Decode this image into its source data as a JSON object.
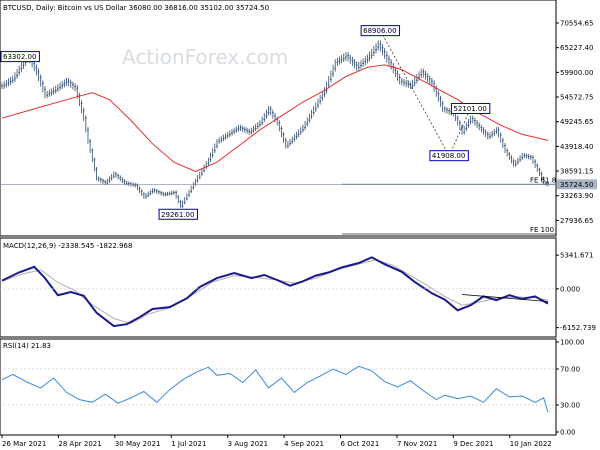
{
  "header": {
    "price": "BTCUSD, Daily:  Bitcoin vs US Dollar  36080.00  36816.00  35102.00  35724.50",
    "macd": "MACD(12,26,9)  -2338.545  -1822.968",
    "rsi": "RSI(14) 21.83"
  },
  "watermark": "ActionForex.com",
  "colors": {
    "candles": "#2d4a6b",
    "ma": "#e03030",
    "macd_line": "#1a1a8c",
    "signal_line": "#b0b0b0",
    "rsi_line": "#3a8ae0",
    "fe_line": "#1f2f3f",
    "annotation_border": "#0000aa",
    "current_price_tag": "#a9b5c4"
  },
  "chart_data": [
    {
      "type": "candlestick",
      "name": "price",
      "title": "BTCUSD, Daily:  Bitcoin vs US Dollar  36080.00  36816.00  35102.00  35724.50",
      "ylim": [
        25000,
        72500
      ],
      "yticks": [
        "70554.65",
        "65227.40",
        "59900.00",
        "54572.75",
        "49245.65",
        "43918.40",
        "38591.15",
        "33263.90",
        "27936.65"
      ],
      "x_labels": [
        "26 Mar 2021",
        "28 Apr 2021",
        "30 May 2021",
        "1 Jul 2021",
        "3 Aug 2021",
        "4 Sep 2021",
        "6 Oct 2021",
        "7 Nov 2021",
        "9 Dec 2021",
        "10 Jan 2022"
      ],
      "close_path": [
        [
          0,
          57000
        ],
        [
          5,
          58500
        ],
        [
          12,
          63500
        ],
        [
          16,
          60000
        ],
        [
          20,
          55000
        ],
        [
          24,
          56000
        ],
        [
          30,
          58000
        ],
        [
          34,
          56500
        ],
        [
          38,
          50000
        ],
        [
          40,
          45000
        ],
        [
          44,
          37000
        ],
        [
          48,
          36000
        ],
        [
          52,
          38000
        ],
        [
          57,
          36000
        ],
        [
          62,
          35500
        ],
        [
          66,
          33000
        ],
        [
          70,
          34500
        ],
        [
          75,
          33500
        ],
        [
          80,
          34000
        ],
        [
          83,
          31000
        ],
        [
          88,
          35000
        ],
        [
          92,
          38000
        ],
        [
          96,
          41000
        ],
        [
          100,
          45000
        ],
        [
          105,
          46500
        ],
        [
          110,
          48000
        ],
        [
          115,
          47000
        ],
        [
          120,
          49000
        ],
        [
          124,
          52000
        ],
        [
          128,
          49000
        ],
        [
          132,
          44000
        ],
        [
          136,
          46000
        ],
        [
          140,
          48000
        ],
        [
          145,
          52000
        ],
        [
          150,
          56000
        ],
        [
          155,
          62000
        ],
        [
          160,
          63500
        ],
        [
          165,
          61000
        ],
        [
          170,
          63000
        ],
        [
          175,
          66000
        ],
        [
          180,
          62000
        ],
        [
          185,
          58000
        ],
        [
          190,
          57000
        ],
        [
          195,
          60000
        ],
        [
          200,
          57500
        ],
        [
          205,
          52000
        ],
        [
          210,
          51000
        ],
        [
          214,
          47000
        ],
        [
          218,
          50000
        ],
        [
          222,
          48000
        ],
        [
          226,
          46000
        ],
        [
          230,
          47500
        ],
        [
          234,
          43000
        ],
        [
          238,
          40000
        ],
        [
          242,
          42000
        ],
        [
          246,
          41500
        ],
        [
          250,
          38000
        ],
        [
          252,
          36000
        ],
        [
          254,
          35724.5
        ]
      ],
      "moving_average": [
        [
          0,
          50000
        ],
        [
          15,
          52000
        ],
        [
          30,
          54000
        ],
        [
          42,
          55500
        ],
        [
          50,
          54000
        ],
        [
          60,
          49500
        ],
        [
          70,
          44500
        ],
        [
          80,
          40500
        ],
        [
          90,
          38500
        ],
        [
          100,
          40500
        ],
        [
          110,
          44000
        ],
        [
          120,
          47500
        ],
        [
          130,
          50500
        ],
        [
          140,
          53500
        ],
        [
          150,
          56000
        ],
        [
          160,
          59000
        ],
        [
          170,
          61000
        ],
        [
          178,
          61500
        ],
        [
          186,
          60500
        ],
        [
          194,
          58500
        ],
        [
          202,
          56500
        ],
        [
          212,
          54000
        ],
        [
          222,
          51000
        ],
        [
          232,
          48500
        ],
        [
          242,
          46500
        ],
        [
          254,
          45200
        ]
      ],
      "annotations": [
        {
          "label": "63302.00",
          "x": 2,
          "y": 63302
        },
        {
          "label": "29261.00",
          "x": 82,
          "y": 29261
        },
        {
          "label": "68906.00",
          "x": 176,
          "y": 68906
        },
        {
          "label": "41908.00",
          "x": 208,
          "y": 41908
        },
        {
          "label": "52101.00",
          "x": 218,
          "y": 52101
        }
      ],
      "fe_levels": [
        {
          "label": "FE 61.8",
          "value": 35724.5
        },
        {
          "label": "FE 100",
          "value": 25000
        }
      ],
      "current_price": "35724.50"
    },
    {
      "type": "line",
      "name": "macd",
      "title": "MACD(12,26,9)  -2338.545  -1822.968",
      "ylim": [
        -7000,
        6000
      ],
      "yticks": [
        "5341.671",
        "0.000",
        "-6152.739"
      ],
      "series": [
        {
          "values": [
            [
              0,
              1300
            ],
            [
              8,
              2600
            ],
            [
              15,
              3500
            ],
            [
              20,
              1700
            ],
            [
              26,
              -1000
            ],
            [
              32,
              -500
            ],
            [
              38,
              -1100
            ],
            [
              44,
              -3800
            ],
            [
              52,
              -5900
            ],
            [
              58,
              -5600
            ],
            [
              64,
              -4500
            ],
            [
              70,
              -3200
            ],
            [
              78,
              -2900
            ],
            [
              86,
              -1500
            ],
            [
              92,
              300
            ],
            [
              100,
              1700
            ],
            [
              108,
              2500
            ],
            [
              116,
              1700
            ],
            [
              122,
              2200
            ],
            [
              128,
              1400
            ],
            [
              134,
              500
            ],
            [
              140,
              1200
            ],
            [
              146,
              2100
            ],
            [
              152,
              2600
            ],
            [
              158,
              3400
            ],
            [
              166,
              4100
            ],
            [
              172,
              5000
            ],
            [
              178,
              3900
            ],
            [
              186,
              2700
            ],
            [
              192,
              1100
            ],
            [
              200,
              -700
            ],
            [
              206,
              -1700
            ],
            [
              212,
              -3400
            ],
            [
              218,
              -2600
            ],
            [
              224,
              -1200
            ],
            [
              230,
              -1800
            ],
            [
              236,
              -1000
            ],
            [
              242,
              -1600
            ],
            [
              248,
              -1200
            ],
            [
              254,
              -2338.5
            ]
          ]
        },
        {
          "values": [
            [
              0,
              1200
            ],
            [
              10,
              2400
            ],
            [
              18,
              3000
            ],
            [
              26,
              1000
            ],
            [
              34,
              -300
            ],
            [
              42,
              -2500
            ],
            [
              52,
              -4700
            ],
            [
              60,
              -5500
            ],
            [
              68,
              -4000
            ],
            [
              78,
              -3000
            ],
            [
              88,
              -1100
            ],
            [
              98,
              1100
            ],
            [
              108,
              2100
            ],
            [
              118,
              1800
            ],
            [
              128,
              1400
            ],
            [
              136,
              900
            ],
            [
              146,
              1700
            ],
            [
              156,
              3000
            ],
            [
              166,
              3900
            ],
            [
              174,
              4600
            ],
            [
              182,
              3700
            ],
            [
              190,
              2100
            ],
            [
              198,
              500
            ],
            [
              206,
              -1200
            ],
            [
              214,
              -2600
            ],
            [
              222,
              -2100
            ],
            [
              230,
              -1500
            ],
            [
              240,
              -1300
            ],
            [
              248,
              -1400
            ],
            [
              254,
              -1823
            ]
          ]
        },
        {
          "values": [
            [
              214,
              -900
            ],
            [
              254,
              -2000
            ]
          ]
        }
      ]
    },
    {
      "type": "line",
      "name": "rsi",
      "title": "RSI(14) 21.83",
      "ylim": [
        0,
        100
      ],
      "yticks": [
        "100.00",
        "70.00",
        "30.00",
        "0.00"
      ],
      "series": [
        {
          "values": [
            [
              0,
              58
            ],
            [
              5,
              64
            ],
            [
              12,
              55
            ],
            [
              18,
              49
            ],
            [
              24,
              60
            ],
            [
              30,
              44
            ],
            [
              36,
              36
            ],
            [
              42,
              33
            ],
            [
              48,
              42
            ],
            [
              54,
              32
            ],
            [
              60,
              38
            ],
            [
              66,
              45
            ],
            [
              72,
              33
            ],
            [
              78,
              47
            ],
            [
              84,
              58
            ],
            [
              90,
              66
            ],
            [
              96,
              72
            ],
            [
              100,
              63
            ],
            [
              106,
              65
            ],
            [
              112,
              55
            ],
            [
              118,
              69
            ],
            [
              124,
              49
            ],
            [
              130,
              60
            ],
            [
              136,
              44
            ],
            [
              142,
              55
            ],
            [
              148,
              62
            ],
            [
              154,
              70
            ],
            [
              160,
              64
            ],
            [
              166,
              73
            ],
            [
              172,
              68
            ],
            [
              178,
              56
            ],
            [
              184,
              50
            ],
            [
              190,
              57
            ],
            [
              196,
              46
            ],
            [
              202,
              36
            ],
            [
              206,
              41
            ],
            [
              212,
              37
            ],
            [
              218,
              40
            ],
            [
              224,
              33
            ],
            [
              230,
              48
            ],
            [
              236,
              39
            ],
            [
              242,
              40
            ],
            [
              248,
              33
            ],
            [
              252,
              38
            ],
            [
              254,
              21.83
            ]
          ]
        }
      ]
    }
  ]
}
